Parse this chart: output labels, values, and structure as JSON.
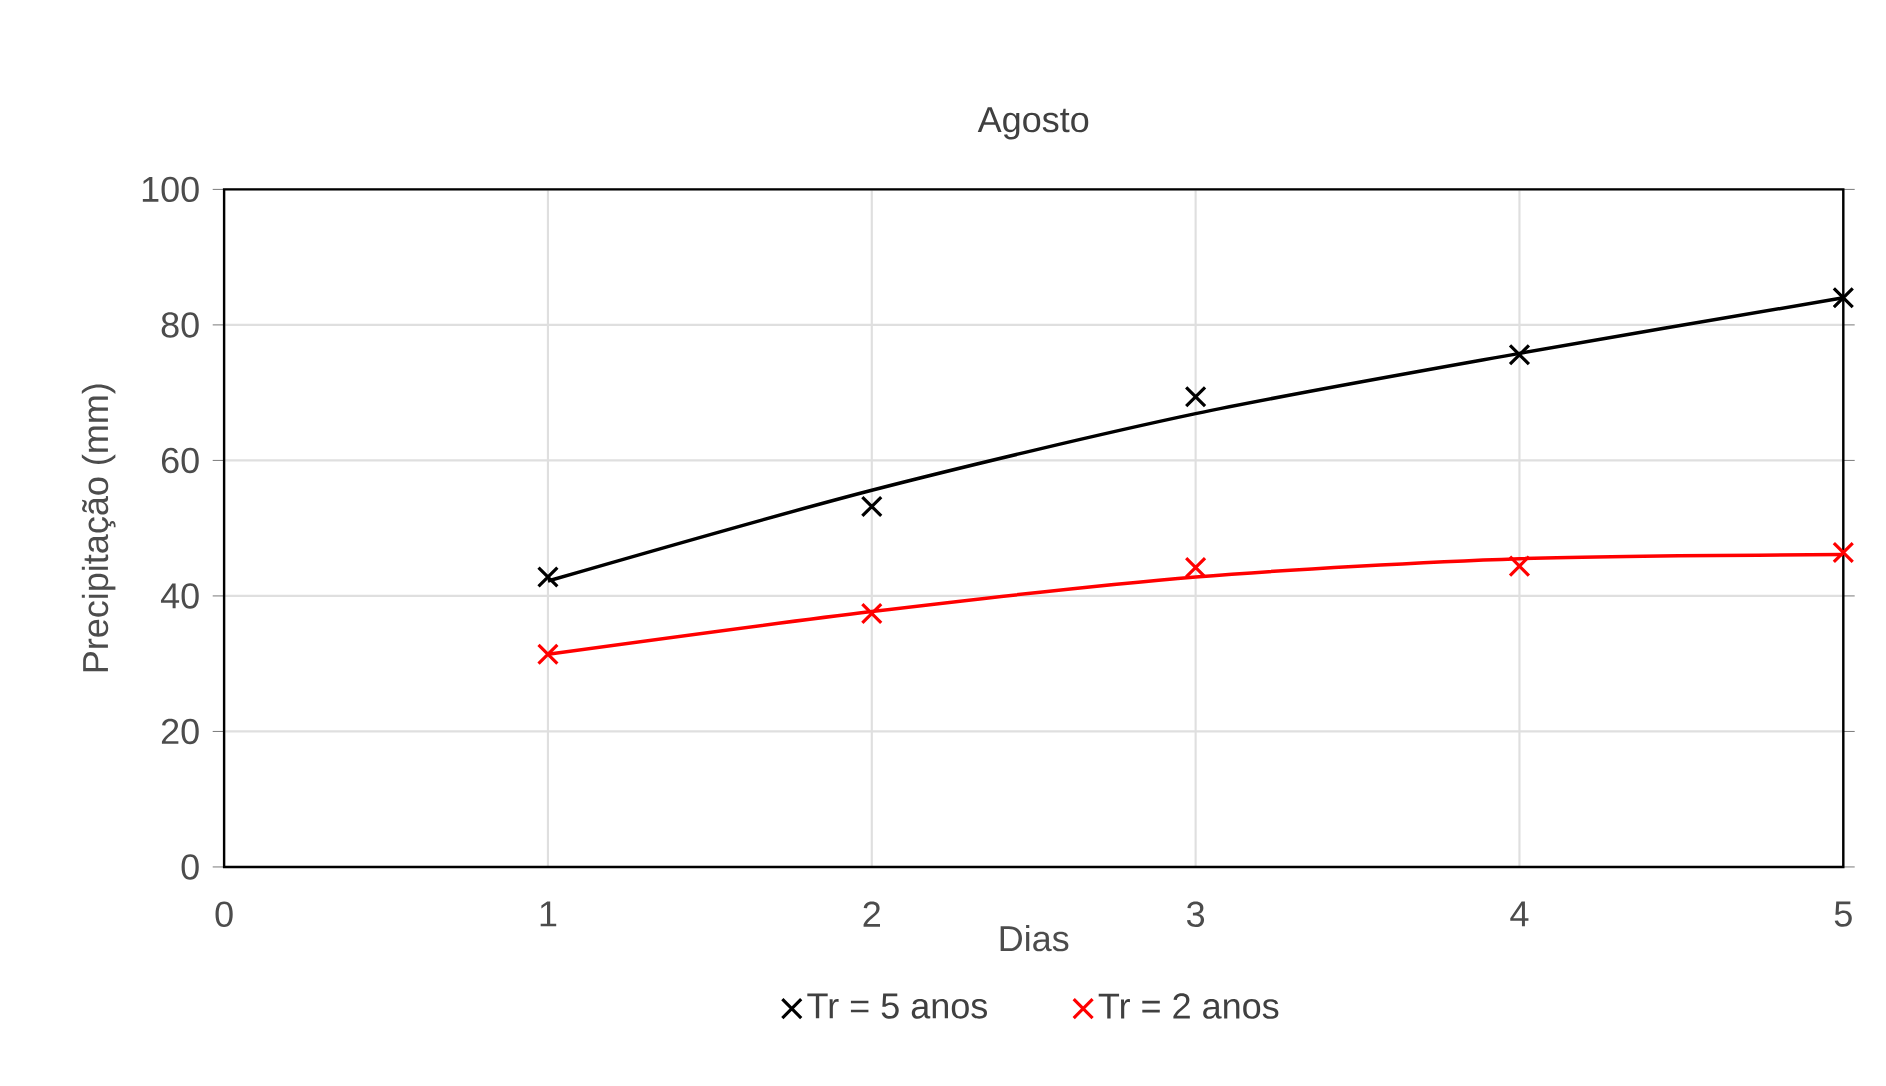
{
  "chart_data": {
    "type": "scatter",
    "title": "Agosto",
    "xlabel": "Dias",
    "ylabel": "Precipitação (mm)",
    "xlim": [
      0,
      5
    ],
    "xticks": [
      0,
      1,
      2,
      3,
      4,
      5
    ],
    "ylim": [
      0,
      100
    ],
    "yticks": [
      0,
      20,
      40,
      60,
      80,
      100
    ],
    "grid": true,
    "legend": "bottom",
    "marker": "cross",
    "series": [
      {
        "name": "Tr = 5 anos",
        "color": "#000000",
        "x": [
          1,
          2,
          3,
          4,
          5
        ],
        "values": [
          42.8,
          53.2,
          69.4,
          75.6,
          84.0
        ]
      },
      {
        "name": "Tr = 2 anos",
        "color": "#ff0000",
        "x": [
          1,
          2,
          3,
          4,
          5
        ],
        "values": [
          31.4,
          37.4,
          44.2,
          44.4,
          46.4
        ]
      },
      {
        "type": "line",
        "marker": "none",
        "color": "#000000",
        "x": [
          1,
          2,
          3,
          4,
          5
        ],
        "values": [
          42.2,
          55.6,
          66.9,
          75.8,
          84.0
        ]
      },
      {
        "type": "line",
        "marker": "none",
        "color": "#ff0000",
        "x": [
          1,
          2,
          3,
          4,
          5
        ],
        "values": [
          31.4,
          37.7,
          42.8,
          45.5,
          46.1
        ]
      }
    ]
  }
}
